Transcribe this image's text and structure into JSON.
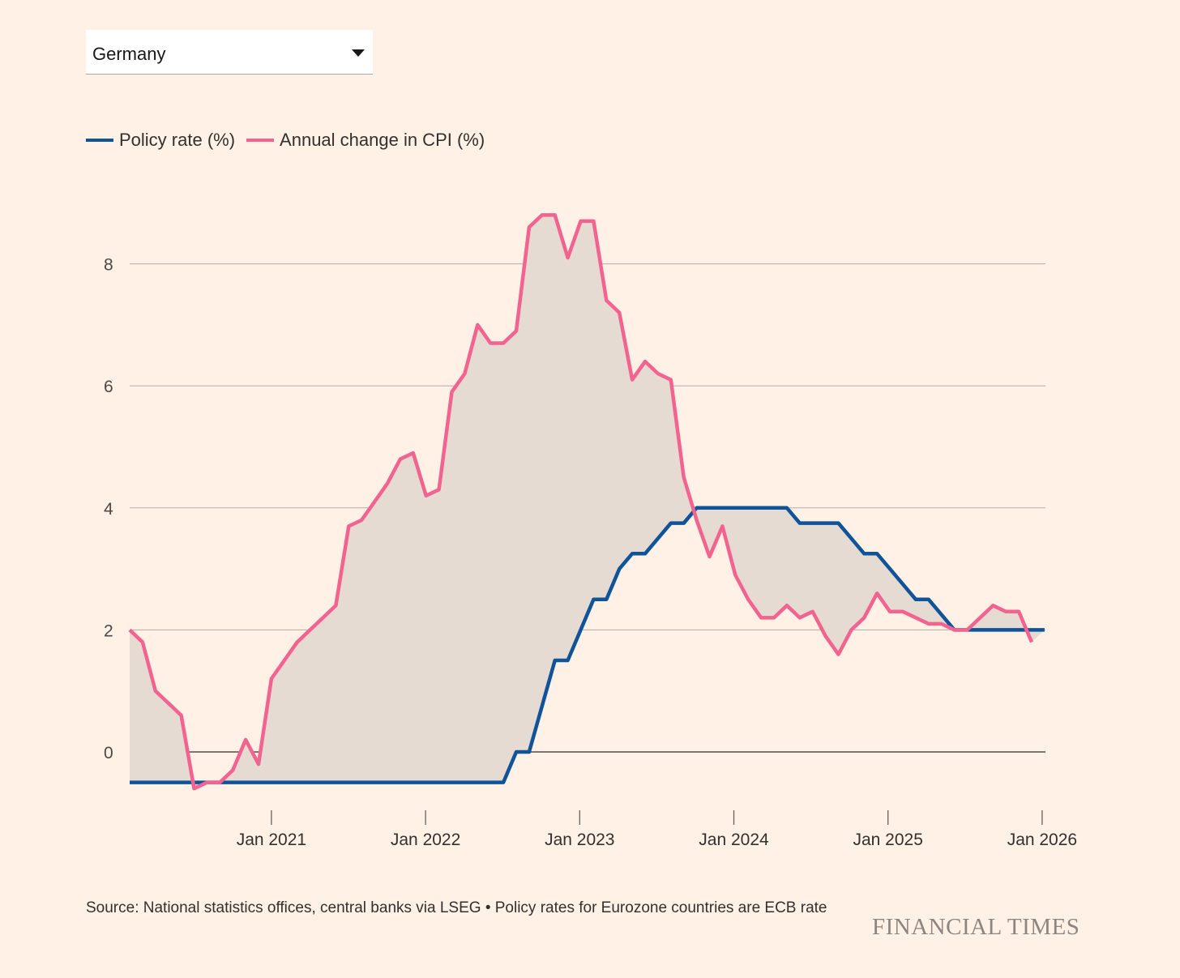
{
  "selector": {
    "value": "Germany"
  },
  "legend": [
    {
      "label": "Policy rate (%)",
      "color": "#0f5499"
    },
    {
      "label": "Annual change in CPI (%)",
      "color": "#f2638f"
    }
  ],
  "chart_data": {
    "type": "line",
    "title": "",
    "xlabel": "",
    "ylabel": "",
    "ylim": [
      -1,
      9.5
    ],
    "yticks": [
      "0",
      "2",
      "4",
      "6",
      "8"
    ],
    "xticks": [
      "Jan 2021",
      "Jan 2022",
      "Jan 2023",
      "Jan 2024",
      "Jan 2025",
      "Jan 2026"
    ],
    "start_month": "Feb 2020",
    "fill_between_series": true,
    "fill_color": "#e5dbd2",
    "series": [
      {
        "name": "Annual change in CPI (%)",
        "color": "#f2638f",
        "values": [
          2.0,
          1.8,
          1.0,
          0.8,
          0.6,
          -0.6,
          -0.5,
          -0.5,
          -0.3,
          0.2,
          -0.2,
          1.2,
          1.5,
          1.8,
          2.0,
          2.2,
          2.4,
          3.7,
          3.8,
          4.1,
          4.4,
          4.8,
          4.9,
          4.2,
          4.3,
          5.9,
          6.2,
          7.0,
          6.7,
          6.7,
          6.9,
          8.6,
          8.8,
          8.8,
          8.1,
          8.7,
          8.7,
          7.4,
          7.2,
          6.1,
          6.4,
          6.2,
          6.1,
          4.5,
          3.8,
          3.2,
          3.7,
          2.9,
          2.5,
          2.2,
          2.2,
          2.4,
          2.2,
          2.3,
          1.9,
          1.6,
          2.0,
          2.2,
          2.6,
          2.3,
          2.3,
          2.2,
          2.1,
          2.1,
          2.0,
          2.0,
          2.2,
          2.4,
          2.3,
          2.3,
          1.8
        ]
      },
      {
        "name": "Policy rate (%)",
        "color": "#0f5499",
        "values": [
          -0.5,
          -0.5,
          -0.5,
          -0.5,
          -0.5,
          -0.5,
          -0.5,
          -0.5,
          -0.5,
          -0.5,
          -0.5,
          -0.5,
          -0.5,
          -0.5,
          -0.5,
          -0.5,
          -0.5,
          -0.5,
          -0.5,
          -0.5,
          -0.5,
          -0.5,
          -0.5,
          -0.5,
          -0.5,
          -0.5,
          -0.5,
          -0.5,
          -0.5,
          -0.5,
          0,
          0,
          0.75,
          1.5,
          1.5,
          2.0,
          2.5,
          2.5,
          3.0,
          3.25,
          3.25,
          3.5,
          3.75,
          3.75,
          4.0,
          4.0,
          4.0,
          4.0,
          4.0,
          4.0,
          4.0,
          4.0,
          3.75,
          3.75,
          3.75,
          3.75,
          3.5,
          3.25,
          3.25,
          3.0,
          2.75,
          2.5,
          2.5,
          2.25,
          2.0,
          2.0,
          2.0,
          2.0,
          2.0,
          2.0,
          2.0,
          2.0
        ]
      }
    ]
  },
  "footer": {
    "source": "Source: National statistics offices, central banks via LSEG • Policy rates for Eurozone countries are ECB rate",
    "logo": "FINANCIAL TIMES"
  }
}
